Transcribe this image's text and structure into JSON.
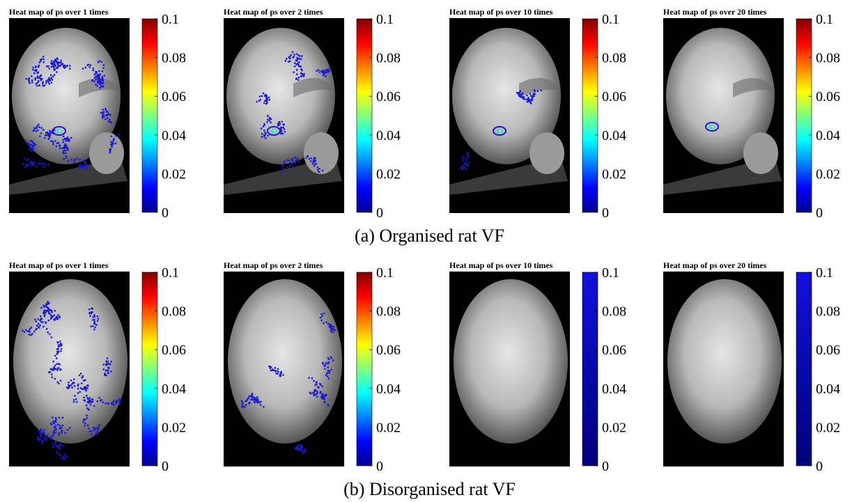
{
  "chart_data": {
    "type": "heatmap",
    "colorbar_ticks": [
      "0",
      "0.02",
      "0.04",
      "0.06",
      "0.08",
      "0.1"
    ],
    "clim": [
      0,
      0.1
    ],
    "colormap": "jet",
    "rows": [
      {
        "caption": "(a) Organised rat VF",
        "panels": [
          {
            "title": "Heat map of ps over 1 times",
            "colorbar": "jet",
            "overlay": "extensive",
            "hotspot": true
          },
          {
            "title": "Heat map of ps over 2 times",
            "colorbar": "jet",
            "overlay": "moderate",
            "hotspot": true
          },
          {
            "title": "Heat map of ps over 10 times",
            "colorbar": "jet",
            "overlay": "sparse",
            "hotspot": true
          },
          {
            "title": "Heat map of ps over 20 times",
            "colorbar": "jet",
            "overlay": "minimal",
            "hotspot": true
          }
        ]
      },
      {
        "caption": "(b) Disorganised rat VF",
        "panels": [
          {
            "title": "Heat map of ps over 1 times",
            "colorbar": "jet",
            "overlay": "extensive",
            "hotspot": false
          },
          {
            "title": "Heat map of ps over 2 times",
            "colorbar": "jet",
            "overlay": "moderate",
            "hotspot": false
          },
          {
            "title": "Heat map of ps over 10 times",
            "colorbar": "blue",
            "overlay": "none",
            "hotspot": false
          },
          {
            "title": "Heat map of ps over 20 times",
            "colorbar": "blue",
            "overlay": "none",
            "hotspot": false
          }
        ]
      }
    ]
  },
  "colors": {
    "overlay": "#1a1ad6",
    "background": "#000000",
    "blue_bar": "#1414c8"
  }
}
